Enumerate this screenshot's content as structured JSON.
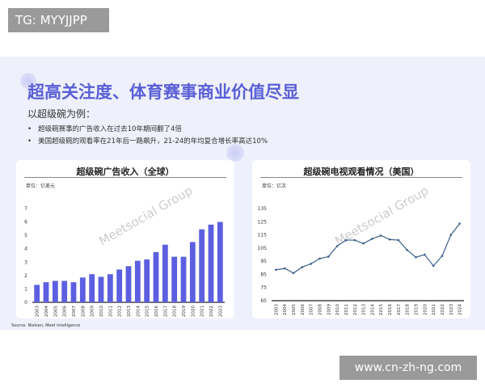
{
  "overlay_label": "TG: MYYJJPP",
  "footer_url": "www.cn-zh-ng.com",
  "slide": {
    "title": "超高关注度、体育赛事商业价值尽显",
    "subtitle": "以超级碗为例：",
    "bullets": [
      "超级碗赛事的广告收入在过去10年期间翻了4倍",
      "美国超级碗的观看率在21年后一路飙升，21-24的年均复合增长率高达10%"
    ],
    "source": "Source: Nielsen, Meet Intelligence",
    "watermark": "Meetsocial Group"
  },
  "colors": {
    "accent": "#5a5fd6",
    "bar": "#5b5fe0",
    "line": "#3d5f8a"
  },
  "chart_data": [
    {
      "type": "bar",
      "title": "超级碗广告收入（全球）",
      "unit": "单位：亿美元",
      "categories": [
        "2003",
        "2004",
        "2005",
        "2006",
        "2007",
        "2008",
        "2009",
        "2010",
        "2011",
        "2012",
        "2013",
        "2014",
        "2015",
        "2016",
        "2017",
        "2018",
        "2019",
        "2020",
        "2021",
        "2022",
        "2023"
      ],
      "values": [
        1.3,
        1.5,
        1.6,
        1.6,
        1.5,
        1.85,
        2.1,
        1.9,
        2.1,
        2.45,
        2.7,
        3.1,
        3.2,
        3.75,
        4.3,
        3.4,
        3.4,
        4.5,
        5.45,
        5.8,
        6.0
      ],
      "ylim": [
        0,
        7
      ],
      "yticks": [
        "0",
        "1",
        "2",
        "3",
        "4",
        "5",
        "6",
        "7"
      ],
      "grid": false
    },
    {
      "type": "line",
      "title": "超级碗电视观看情况（美国）",
      "unit": "单位：亿次",
      "categories": [
        "2003",
        "2004",
        "2005",
        "2006",
        "2007",
        "2008",
        "2009",
        "2010",
        "2011",
        "2012",
        "2013",
        "2014",
        "2015",
        "2016",
        "2017",
        "2018",
        "2019",
        "2020",
        "2021",
        "2022",
        "2023",
        "2024"
      ],
      "values": [
        88.5,
        89.5,
        86,
        90.5,
        93,
        97,
        98.5,
        106.5,
        111,
        111,
        108.5,
        112,
        114.5,
        111.5,
        111,
        103.5,
        98,
        100,
        91.5,
        99,
        115,
        123.5
      ],
      "ylim": [
        65,
        135
      ],
      "yticks": [
        "65",
        "75",
        "85",
        "95",
        "105",
        "115",
        "125",
        "135"
      ],
      "grid": false
    }
  ]
}
